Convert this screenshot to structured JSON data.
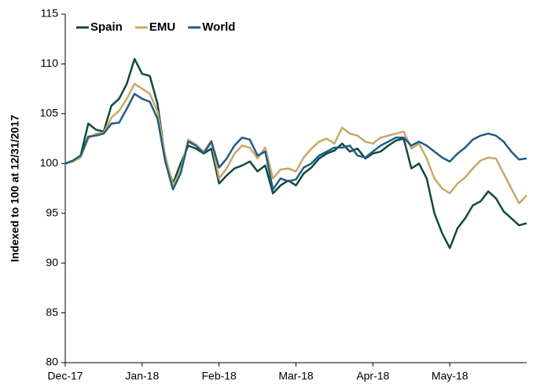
{
  "chart_data": {
    "type": "line",
    "ylabel": "Indexed to 100 at 12/31/2017",
    "x": [
      0,
      1,
      2,
      3,
      4,
      5,
      6,
      7,
      8,
      9,
      10,
      11,
      12,
      13,
      14,
      15,
      16,
      17,
      18,
      19,
      20,
      21,
      22,
      23,
      24,
      25,
      26,
      27,
      28,
      29,
      30,
      31,
      32,
      33,
      34,
      35,
      36,
      37,
      38,
      39,
      40,
      41,
      42,
      43,
      44,
      45,
      46,
      47,
      48,
      49,
      50,
      51,
      52,
      53,
      54,
      55,
      56,
      57,
      58,
      59,
      60
    ],
    "xlim": [
      0,
      60
    ],
    "xticks": [
      {
        "value": 0,
        "label": "Dec-17"
      },
      {
        "value": 10,
        "label": "Jan-18"
      },
      {
        "value": 20,
        "label": "Feb-18"
      },
      {
        "value": 30,
        "label": "Mar-18"
      },
      {
        "value": 40,
        "label": "Apr-18"
      },
      {
        "value": 50,
        "label": "May-18"
      }
    ],
    "ylim": [
      80,
      115
    ],
    "yticks": [
      80,
      85,
      90,
      95,
      100,
      105,
      110,
      115
    ],
    "legend": "top-left",
    "series": [
      {
        "name": "Spain",
        "color": "#0e4b3a",
        "values": [
          100,
          100.2,
          100.8,
          104,
          103.4,
          103.2,
          105.8,
          106.5,
          108,
          110.5,
          109,
          108.8,
          106,
          100.5,
          98,
          100,
          101.8,
          101.5,
          101,
          101.5,
          98,
          98.8,
          99.5,
          99.8,
          100.2,
          99.2,
          99.8,
          97,
          97.8,
          98.3,
          97.8,
          99,
          99.6,
          100.5,
          101,
          101.3,
          102,
          101.2,
          101.5,
          100.5,
          101,
          101.2,
          101.8,
          102.3,
          102.5,
          99.5,
          100,
          98.5,
          95,
          93,
          91.5,
          93.5,
          94.5,
          95.8,
          96.2,
          97.2,
          96.5,
          95.2,
          94.5,
          93.8,
          94
        ]
      },
      {
        "name": "EMU",
        "color": "#c9a868",
        "values": [
          100,
          100.2,
          100.6,
          102.5,
          103,
          103.1,
          104.6,
          105.3,
          106.5,
          108,
          107.5,
          107,
          105.2,
          100.8,
          97.8,
          99.3,
          102.4,
          101.9,
          101.2,
          102.3,
          98.5,
          99.5,
          101,
          101.8,
          101.6,
          100.5,
          101.6,
          98.5,
          99.4,
          99.5,
          99.2,
          100.6,
          101.5,
          102.2,
          102.5,
          102,
          103.6,
          103,
          102.8,
          102.2,
          102,
          102.6,
          102.8,
          103,
          103.2,
          101.5,
          102,
          100.5,
          98.5,
          97.5,
          97,
          98,
          98.6,
          99.5,
          100.3,
          100.6,
          100.5,
          99,
          97.5,
          96,
          96.8
        ]
      },
      {
        "name": "World",
        "color": "#1f5d85",
        "values": [
          100,
          100.3,
          100.8,
          102.7,
          102.8,
          103,
          104,
          104.1,
          105.5,
          107,
          106.5,
          106.2,
          104.5,
          100.2,
          97.4,
          99,
          102.2,
          101.8,
          101,
          102.2,
          99.6,
          100.5,
          101.8,
          102.6,
          102.4,
          100.8,
          101.2,
          97.4,
          98.5,
          98.2,
          98.4,
          99.6,
          100,
          100.8,
          101.2,
          101.6,
          101.6,
          101.8,
          100.8,
          100.6,
          101.2,
          101.8,
          102.2,
          102.6,
          102.6,
          101.8,
          102.2,
          101.8,
          101.2,
          100.6,
          100.2,
          101,
          101.6,
          102.4,
          102.8,
          103,
          102.8,
          102.2,
          101.2,
          100.4,
          100.5
        ]
      }
    ]
  }
}
